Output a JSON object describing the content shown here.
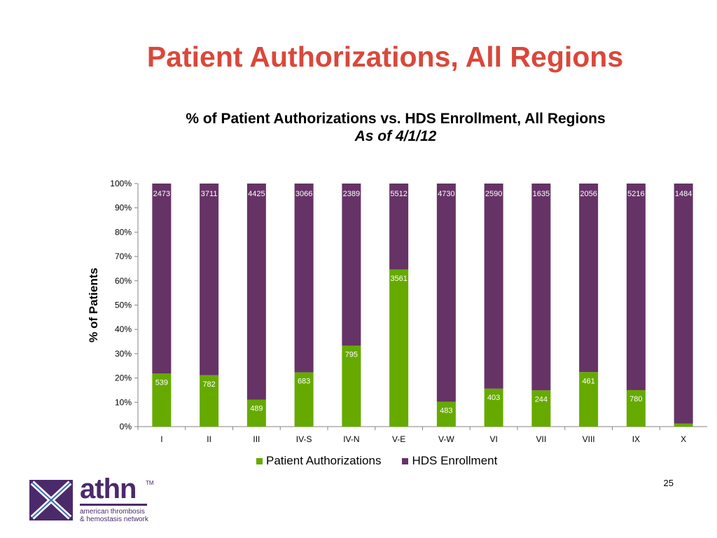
{
  "slide": {
    "title": "Patient Authorizations, All Regions",
    "page_number": "25"
  },
  "logo": {
    "wordmark": "athn",
    "trademark": "TM",
    "tagline_line1": "american thrombosis",
    "tagline_line2": "& hemostasis network",
    "color": "#4b2a6b"
  },
  "chart_data": {
    "type": "bar",
    "stacking": "percent",
    "title": "% of Patient Authorizations vs. HDS Enrollment, All Regions",
    "subtitle": "As of 4/1/12",
    "xlabel": "",
    "ylabel": "% of Patients",
    "ylim": [
      0,
      100
    ],
    "yticks": [
      "0%",
      "10%",
      "20%",
      "30%",
      "40%",
      "50%",
      "60%",
      "70%",
      "80%",
      "90%",
      "100%"
    ],
    "grid": false,
    "legend_position": "bottom",
    "categories": [
      "I",
      "II",
      "III",
      "IV-S",
      "IV-N",
      "V-E",
      "V-W",
      "VI",
      "VII",
      "VIII",
      "IX",
      "X"
    ],
    "series": [
      {
        "name": "Patient Authorizations",
        "color": "#66aa00",
        "values": [
          539,
          782,
          489,
          683,
          795,
          3561,
          483,
          403,
          244,
          461,
          780,
          null
        ],
        "labels": [
          "539",
          "782",
          "489",
          "683",
          "795",
          "3561",
          "483",
          "403",
          "244",
          "461",
          "780",
          ""
        ],
        "percent": [
          21.8,
          21.1,
          11.1,
          22.3,
          33.3,
          64.6,
          10.2,
          15.6,
          14.9,
          22.4,
          15.0,
          1.3
        ]
      },
      {
        "name": "HDS Enrollment",
        "color": "#663366",
        "values": [
          2473,
          3711,
          4425,
          3066,
          2389,
          5512,
          4730,
          2590,
          1635,
          2056,
          5216,
          1484
        ],
        "labels": [
          "2473",
          "3711",
          "4425",
          "3066",
          "2389",
          "5512",
          "4730",
          "2590",
          "1635",
          "2056",
          "5216",
          "1484"
        ]
      }
    ]
  }
}
